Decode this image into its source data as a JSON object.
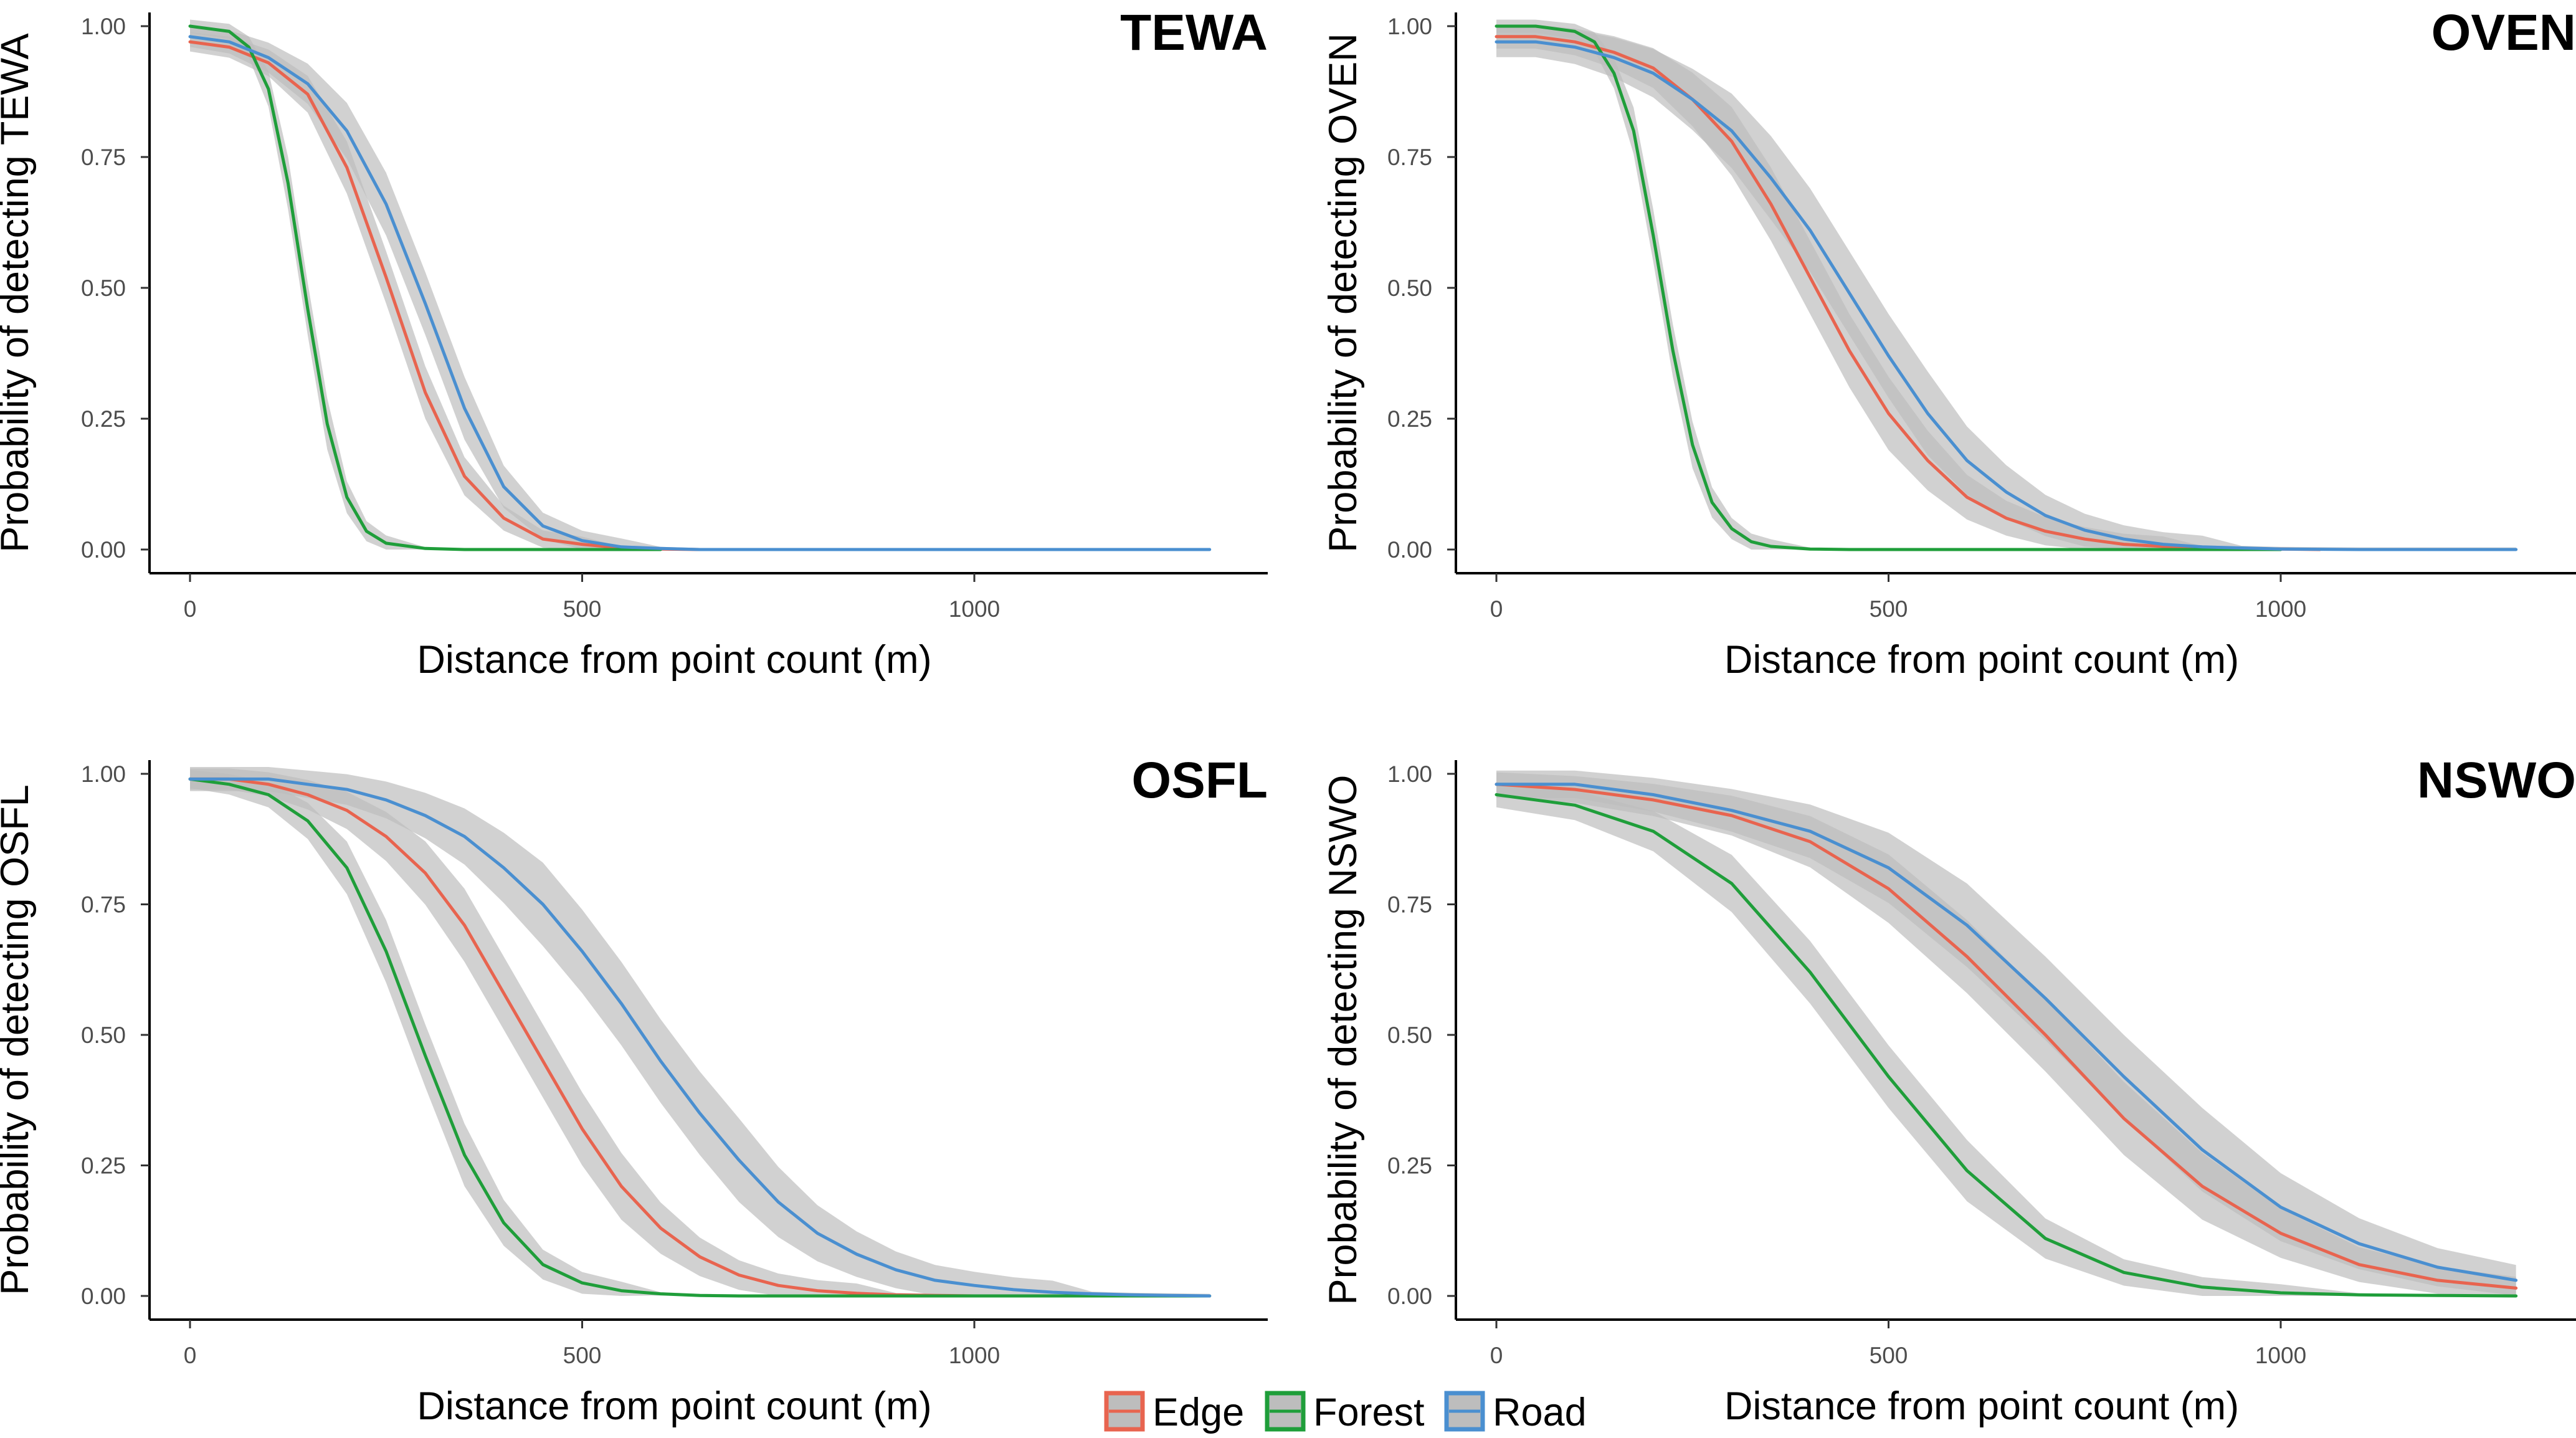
{
  "chart_data": [
    {
      "type": "line",
      "title": "TEWA",
      "xlabel": "Distance from point count (m)",
      "ylabel": "Probability of detecting TEWA",
      "xlim": [
        0,
        1300
      ],
      "ylim": [
        0,
        1
      ],
      "x_ticks": [
        "0",
        "500",
        "1000"
      ],
      "y_ticks": [
        "0.00",
        "0.25",
        "0.50",
        "0.75",
        "1.00"
      ],
      "series": [
        {
          "name": "Edge",
          "color": "#E8644F",
          "x": [
            0,
            50,
            100,
            150,
            200,
            250,
            300,
            350,
            400,
            450,
            500,
            550,
            600,
            650
          ],
          "y": [
            0.97,
            0.96,
            0.93,
            0.87,
            0.73,
            0.52,
            0.3,
            0.14,
            0.06,
            0.02,
            0.01,
            0.003,
            0.001,
            0.0
          ],
          "ci_width": 0.05
        },
        {
          "name": "Forest",
          "color": "#1F9E3A",
          "x": [
            0,
            50,
            75,
            100,
            125,
            150,
            175,
            200,
            225,
            250,
            300,
            350,
            400,
            450,
            500,
            550,
            600
          ],
          "y": [
            1.0,
            0.99,
            0.96,
            0.88,
            0.7,
            0.46,
            0.24,
            0.1,
            0.035,
            0.012,
            0.002,
            0.0,
            0.0,
            0.0,
            0.0,
            0.0,
            0.0
          ],
          "ci_width": 0.05
        },
        {
          "name": "Road",
          "color": "#4A8FD0",
          "x": [
            0,
            50,
            100,
            150,
            200,
            250,
            300,
            350,
            400,
            450,
            500,
            550,
            600,
            650,
            700,
            800,
            900,
            1000,
            1100,
            1200,
            1300
          ],
          "y": [
            0.98,
            0.97,
            0.94,
            0.89,
            0.8,
            0.66,
            0.47,
            0.27,
            0.12,
            0.045,
            0.017,
            0.005,
            0.002,
            0.0,
            0.0,
            0.0,
            0.0,
            0.0,
            0.0,
            0.0,
            0.0
          ],
          "ci_width": 0.06
        }
      ]
    },
    {
      "type": "line",
      "title": "OVEN",
      "xlabel": "Distance from point count (m)",
      "ylabel": "Probability of detecting OVEN",
      "xlim": [
        0,
        1300
      ],
      "ylim": [
        0,
        1
      ],
      "x_ticks": [
        "0",
        "500",
        "1000"
      ],
      "y_ticks": [
        "0.00",
        "0.25",
        "0.50",
        "0.75",
        "1.00"
      ],
      "series": [
        {
          "name": "Edge",
          "color": "#E8644F",
          "x": [
            0,
            50,
            100,
            150,
            200,
            250,
            300,
            350,
            400,
            450,
            500,
            550,
            600,
            650,
            700,
            750,
            800,
            850,
            900,
            950,
            1000,
            1050
          ],
          "y": [
            0.98,
            0.98,
            0.97,
            0.95,
            0.92,
            0.86,
            0.78,
            0.66,
            0.52,
            0.38,
            0.26,
            0.17,
            0.1,
            0.06,
            0.035,
            0.02,
            0.01,
            0.006,
            0.003,
            0.002,
            0.001,
            0.0
          ],
          "ci_width": 0.07
        },
        {
          "name": "Forest",
          "color": "#1F9E3A",
          "x": [
            0,
            50,
            100,
            125,
            150,
            175,
            200,
            225,
            250,
            275,
            300,
            325,
            350,
            400,
            450,
            500,
            600,
            700,
            800,
            900,
            1000
          ],
          "y": [
            1.0,
            1.0,
            0.99,
            0.97,
            0.91,
            0.8,
            0.6,
            0.38,
            0.2,
            0.09,
            0.04,
            0.015,
            0.006,
            0.001,
            0.0,
            0.0,
            0.0,
            0.0,
            0.0,
            0.0,
            0.0
          ],
          "ci_width": 0.05
        },
        {
          "name": "Road",
          "color": "#4A8FD0",
          "x": [
            0,
            50,
            100,
            150,
            200,
            250,
            300,
            350,
            400,
            450,
            500,
            550,
            600,
            650,
            700,
            750,
            800,
            850,
            900,
            950,
            1000,
            1100,
            1200,
            1300
          ],
          "y": [
            0.97,
            0.97,
            0.96,
            0.94,
            0.91,
            0.86,
            0.8,
            0.71,
            0.61,
            0.49,
            0.37,
            0.26,
            0.17,
            0.11,
            0.065,
            0.037,
            0.02,
            0.01,
            0.005,
            0.003,
            0.001,
            0.0,
            0.0,
            0.0
          ],
          "ci_width": 0.08
        }
      ]
    },
    {
      "type": "line",
      "title": "OSFL",
      "xlabel": "Distance from point count (m)",
      "ylabel": "Probability of detecting OSFL",
      "xlim": [
        0,
        1300
      ],
      "ylim": [
        0,
        1
      ],
      "x_ticks": [
        "0",
        "500",
        "1000"
      ],
      "y_ticks": [
        "0.00",
        "0.25",
        "0.50",
        "0.75",
        "1.00"
      ],
      "series": [
        {
          "name": "Edge",
          "color": "#E8644F",
          "x": [
            0,
            50,
            100,
            150,
            200,
            250,
            300,
            350,
            400,
            450,
            500,
            550,
            600,
            650,
            700,
            750,
            800,
            850,
            900,
            950,
            1000,
            1100,
            1200,
            1300
          ],
          "y": [
            0.99,
            0.99,
            0.98,
            0.96,
            0.93,
            0.88,
            0.81,
            0.71,
            0.58,
            0.45,
            0.32,
            0.21,
            0.13,
            0.075,
            0.04,
            0.02,
            0.01,
            0.005,
            0.002,
            0.001,
            0.0,
            0.0,
            0.0,
            0.0
          ],
          "ci_width": 0.07
        },
        {
          "name": "Forest",
          "color": "#1F9E3A",
          "x": [
            0,
            50,
            100,
            150,
            200,
            250,
            300,
            350,
            400,
            450,
            500,
            550,
            600,
            650,
            700,
            800,
            900,
            1000,
            1100,
            1200,
            1300
          ],
          "y": [
            0.99,
            0.98,
            0.96,
            0.91,
            0.82,
            0.66,
            0.46,
            0.27,
            0.14,
            0.06,
            0.025,
            0.01,
            0.004,
            0.001,
            0.0,
            0.0,
            0.0,
            0.0,
            0.0,
            0.0,
            0.0
          ],
          "ci_width": 0.06
        },
        {
          "name": "Road",
          "color": "#4A8FD0",
          "x": [
            0,
            50,
            100,
            150,
            200,
            250,
            300,
            350,
            400,
            450,
            500,
            550,
            600,
            650,
            700,
            750,
            800,
            850,
            900,
            950,
            1000,
            1050,
            1100,
            1150,
            1200,
            1250,
            1300
          ],
          "y": [
            0.99,
            0.99,
            0.99,
            0.98,
            0.97,
            0.95,
            0.92,
            0.88,
            0.82,
            0.75,
            0.66,
            0.56,
            0.45,
            0.35,
            0.26,
            0.18,
            0.12,
            0.08,
            0.05,
            0.03,
            0.02,
            0.012,
            0.007,
            0.004,
            0.002,
            0.001,
            0.0
          ],
          "ci_width": 0.08
        }
      ]
    },
    {
      "type": "line",
      "title": "NSWO",
      "xlabel": "Distance from point count (m)",
      "ylabel": "Probability of detecting NSWO",
      "xlim": [
        0,
        1300
      ],
      "ylim": [
        0,
        1
      ],
      "x_ticks": [
        "0",
        "500",
        "1000"
      ],
      "y_ticks": [
        "0.00",
        "0.25",
        "0.50",
        "0.75",
        "1.00"
      ],
      "series": [
        {
          "name": "Edge",
          "color": "#E8644F",
          "x": [
            0,
            100,
            200,
            300,
            400,
            500,
            600,
            700,
            800,
            900,
            1000,
            1100,
            1200,
            1300
          ],
          "y": [
            0.98,
            0.97,
            0.95,
            0.92,
            0.87,
            0.78,
            0.65,
            0.5,
            0.34,
            0.21,
            0.12,
            0.06,
            0.03,
            0.015
          ],
          "ci_width": 0.07
        },
        {
          "name": "Forest",
          "color": "#1F9E3A",
          "x": [
            0,
            100,
            200,
            300,
            400,
            500,
            600,
            700,
            800,
            900,
            1000,
            1100,
            1200,
            1300
          ],
          "y": [
            0.96,
            0.94,
            0.89,
            0.79,
            0.62,
            0.42,
            0.24,
            0.11,
            0.045,
            0.017,
            0.006,
            0.002,
            0.001,
            0.0
          ],
          "ci_width": 0.06
        },
        {
          "name": "Road",
          "color": "#4A8FD0",
          "x": [
            0,
            100,
            200,
            300,
            400,
            500,
            600,
            700,
            800,
            900,
            1000,
            1100,
            1200,
            1300
          ],
          "y": [
            0.98,
            0.98,
            0.96,
            0.93,
            0.89,
            0.82,
            0.71,
            0.57,
            0.42,
            0.28,
            0.17,
            0.1,
            0.055,
            0.03
          ],
          "ci_width": 0.08
        }
      ]
    }
  ],
  "legend": {
    "placement": "bottom-center",
    "items": [
      {
        "label": "Edge",
        "color": "#E8644F"
      },
      {
        "label": "Forest",
        "color": "#1F9E3A"
      },
      {
        "label": "Road",
        "color": "#4A8FD0"
      }
    ]
  },
  "ci_fill_color": "#BDBDBD"
}
